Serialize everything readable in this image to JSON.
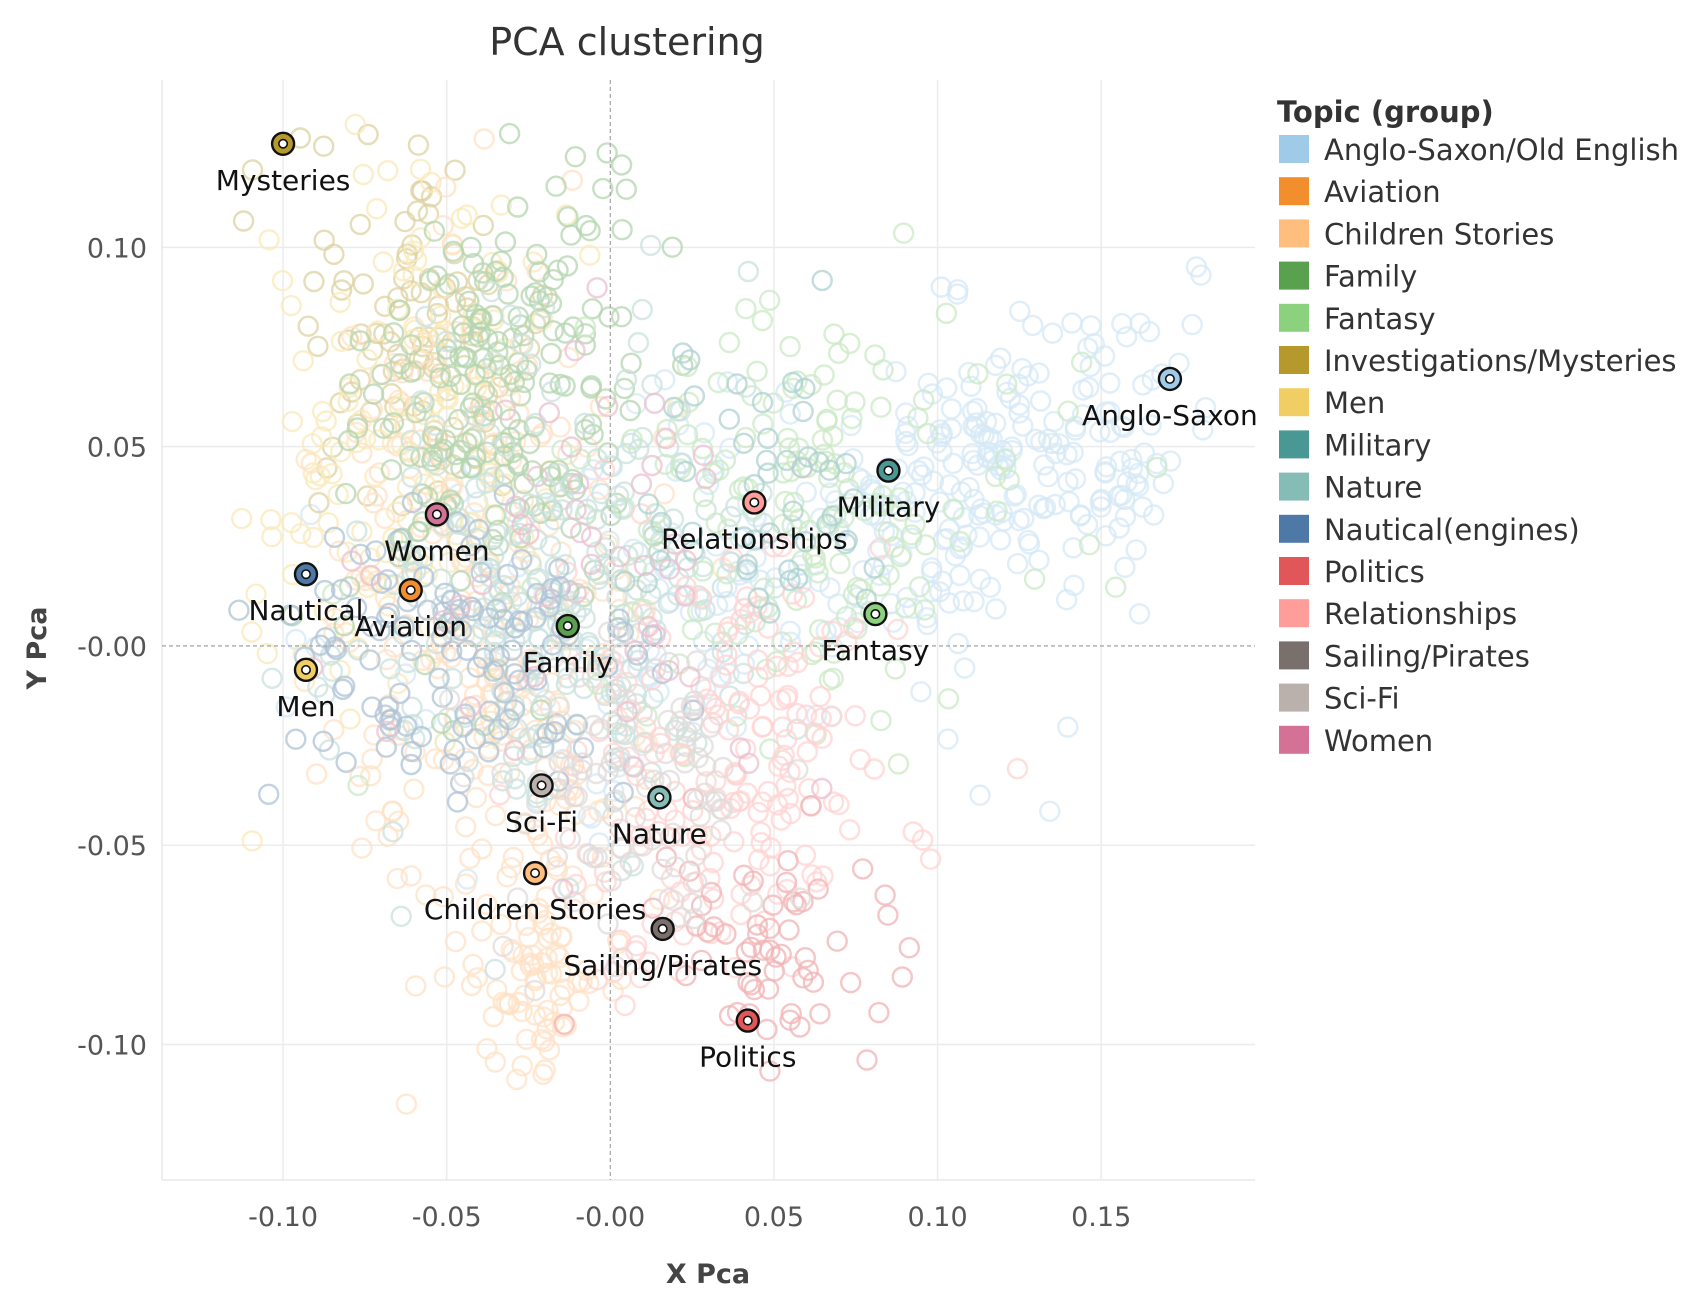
{
  "chart_data": {
    "type": "scatter",
    "title": "PCA clustering",
    "xlabel": "X Pca",
    "ylabel": "Y Pca",
    "xlim": [
      -0.137,
      0.197
    ],
    "ylim": [
      -0.134,
      0.142
    ],
    "x_ticks": [
      {
        "value": -0.1,
        "label": "-0.10"
      },
      {
        "value": -0.05,
        "label": "-0.05"
      },
      {
        "value": 0.0,
        "label": "-0.00"
      },
      {
        "value": 0.05,
        "label": "0.05"
      },
      {
        "value": 0.1,
        "label": "0.10"
      },
      {
        "value": 0.15,
        "label": "0.15"
      }
    ],
    "y_ticks": [
      {
        "value": 0.1,
        "label": "0.10"
      },
      {
        "value": 0.05,
        "label": "0.05"
      },
      {
        "value": 0.0,
        "label": "-0.00"
      },
      {
        "value": -0.05,
        "label": "-0.05"
      },
      {
        "value": -0.1,
        "label": "-0.10"
      }
    ],
    "grid": true,
    "zero_lines": true,
    "legend": {
      "title": "Topic (group)",
      "placement": "right",
      "entries": [
        {
          "label": "Anglo-Saxon/Old English",
          "color": "#a0cbe8"
        },
        {
          "label": "Aviation",
          "color": "#f28e2b"
        },
        {
          "label": "Children Stories",
          "color": "#ffbe7d"
        },
        {
          "label": "Family",
          "color": "#59a14f"
        },
        {
          "label": "Fantasy",
          "color": "#8cd17d"
        },
        {
          "label": "Investigations/Mysteries",
          "color": "#b6992d"
        },
        {
          "label": "Men",
          "color": "#f1ce63"
        },
        {
          "label": "Military",
          "color": "#499894"
        },
        {
          "label": "Nature",
          "color": "#86bcb6"
        },
        {
          "label": "Nautical(engines)",
          "color": "#4e79a7"
        },
        {
          "label": "Politics",
          "color": "#e15759"
        },
        {
          "label": "Relationships",
          "color": "#ff9d9a"
        },
        {
          "label": "Sailing/Pirates",
          "color": "#79706e"
        },
        {
          "label": "Sci-Fi",
          "color": "#bab0ac"
        },
        {
          "label": "Women",
          "color": "#d37295"
        }
      ]
    },
    "centroids": [
      {
        "label": "Mysteries",
        "x": -0.1,
        "y": 0.126,
        "color": "#b6992d",
        "label_pos": "below"
      },
      {
        "label": "Anglo-Saxon",
        "x": 0.171,
        "y": 0.067,
        "color": "#a0cbe8",
        "label_pos": "below"
      },
      {
        "label": "Military",
        "x": 0.085,
        "y": 0.044,
        "color": "#499894",
        "label_pos": "below"
      },
      {
        "label": "Relationships",
        "x": 0.044,
        "y": 0.036,
        "color": "#ff9d9a",
        "label_pos": "below"
      },
      {
        "label": "Women",
        "x": -0.053,
        "y": 0.033,
        "color": "#d37295",
        "label_pos": "below"
      },
      {
        "label": "Nautical",
        "x": -0.093,
        "y": 0.018,
        "color": "#4e79a7",
        "label_pos": "below"
      },
      {
        "label": "Aviation",
        "x": -0.061,
        "y": 0.014,
        "color": "#f28e2b",
        "label_pos": "below"
      },
      {
        "label": "Fantasy",
        "x": 0.081,
        "y": 0.008,
        "color": "#8cd17d",
        "label_pos": "below"
      },
      {
        "label": "Family",
        "x": -0.013,
        "y": 0.005,
        "color": "#59a14f",
        "label_pos": "below"
      },
      {
        "label": "Men",
        "x": -0.093,
        "y": -0.006,
        "color": "#f1ce63",
        "label_pos": "below"
      },
      {
        "label": "Sci-Fi",
        "x": -0.021,
        "y": -0.035,
        "color": "#bab0ac",
        "label_pos": "below"
      },
      {
        "label": "Nature",
        "x": 0.015,
        "y": -0.038,
        "color": "#86bcb6",
        "label_pos": "below"
      },
      {
        "label": "Children Stories",
        "x": -0.023,
        "y": -0.057,
        "color": "#ffbe7d",
        "label_pos": "below"
      },
      {
        "label": "Sailing/Pirates",
        "x": 0.016,
        "y": -0.071,
        "color": "#79706e",
        "label_pos": "below"
      },
      {
        "label": "Politics",
        "x": 0.042,
        "y": -0.094,
        "color": "#e15759",
        "label_pos": "below"
      }
    ],
    "point_clouds": [
      {
        "group": "Anglo-Saxon/Old English",
        "color": "#a0cbe8",
        "count": 240,
        "center": [
          0.12,
          0.045
        ],
        "spread": [
          0.035,
          0.018
        ],
        "tilt": 0.3
      },
      {
        "group": "Anglo-Saxon/Old English",
        "color": "#a0cbe8",
        "count": 120,
        "center": [
          0.03,
          0.01
        ],
        "spread": [
          0.05,
          0.03
        ],
        "tilt": 0.0
      },
      {
        "group": "Investigations/Mysteries",
        "color": "#b6992d",
        "count": 110,
        "center": [
          -0.058,
          0.08
        ],
        "spread": [
          0.02,
          0.025
        ],
        "tilt": 0.0
      },
      {
        "group": "Men",
        "color": "#f1ce63",
        "count": 150,
        "center": [
          -0.06,
          0.055
        ],
        "spread": [
          0.025,
          0.035
        ],
        "tilt": -0.4
      },
      {
        "group": "Children Stories",
        "color": "#ffbe7d",
        "count": 260,
        "center": [
          -0.035,
          0.0
        ],
        "spread": [
          0.025,
          0.045
        ],
        "tilt": 0.1
      },
      {
        "group": "Children Stories",
        "color": "#ffbe7d",
        "count": 60,
        "center": [
          -0.02,
          -0.085
        ],
        "spread": [
          0.008,
          0.012
        ],
        "tilt": 0.0
      },
      {
        "group": "Family",
        "color": "#59a14f",
        "count": 200,
        "center": [
          -0.035,
          0.06
        ],
        "spread": [
          0.02,
          0.03
        ],
        "tilt": -0.3
      },
      {
        "group": "Nature",
        "color": "#86bcb6",
        "count": 260,
        "center": [
          -0.015,
          0.01
        ],
        "spread": [
          0.03,
          0.03
        ],
        "tilt": -0.4
      },
      {
        "group": "Fantasy",
        "color": "#8cd17d",
        "count": 160,
        "center": [
          0.06,
          0.035
        ],
        "spread": [
          0.035,
          0.025
        ],
        "tilt": 0.0
      },
      {
        "group": "Relationships",
        "color": "#ff9d9a",
        "count": 180,
        "center": [
          0.035,
          -0.03
        ],
        "spread": [
          0.025,
          0.03
        ],
        "tilt": -0.5
      },
      {
        "group": "Politics",
        "color": "#e15759",
        "count": 60,
        "center": [
          0.05,
          -0.075
        ],
        "spread": [
          0.02,
          0.02
        ],
        "tilt": 0.0
      },
      {
        "group": "Nautical(engines)",
        "color": "#4e79a7",
        "count": 120,
        "center": [
          -0.045,
          -0.005
        ],
        "spread": [
          0.03,
          0.02
        ],
        "tilt": 0.0
      },
      {
        "group": "Sci-Fi",
        "color": "#bab0ac",
        "count": 90,
        "center": [
          0.005,
          -0.04
        ],
        "spread": [
          0.02,
          0.02
        ],
        "tilt": 0.0
      },
      {
        "group": "Military",
        "color": "#499894",
        "count": 50,
        "center": [
          0.04,
          0.04
        ],
        "spread": [
          0.025,
          0.02
        ],
        "tilt": 0.0
      },
      {
        "group": "Women",
        "color": "#d37295",
        "count": 50,
        "center": [
          0.0,
          0.02
        ],
        "spread": [
          0.03,
          0.025
        ],
        "tilt": 0.0
      }
    ]
  }
}
